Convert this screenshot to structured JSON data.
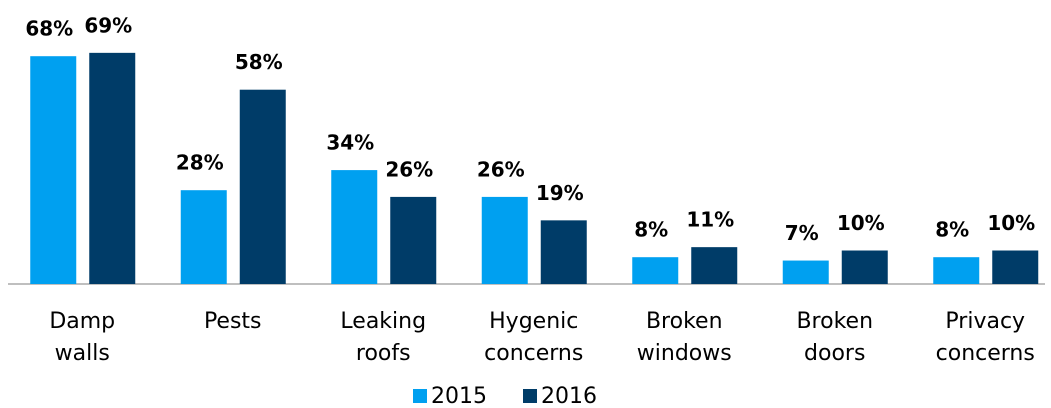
{
  "chart_data": {
    "type": "bar",
    "categories": [
      "Damp walls",
      "Pests",
      "Leaking roofs",
      "Hygenic concerns",
      "Broken windows",
      "Broken doors",
      "Privacy concerns"
    ],
    "series": [
      {
        "name": "2015",
        "color": "#00a0f0",
        "values": [
          68,
          28,
          34,
          26,
          8,
          7,
          8
        ],
        "value_labels": [
          "68%",
          "28%",
          "34%",
          "26%",
          "8%",
          "7%",
          "8%"
        ]
      },
      {
        "name": "2016",
        "color": "#003c68",
        "values": [
          69,
          58,
          26,
          19,
          11,
          10,
          10
        ],
        "value_labels": [
          "69%",
          "58%",
          "26%",
          "19%",
          "11%",
          "10%",
          "10%"
        ]
      }
    ],
    "legend": "bottom"
  }
}
